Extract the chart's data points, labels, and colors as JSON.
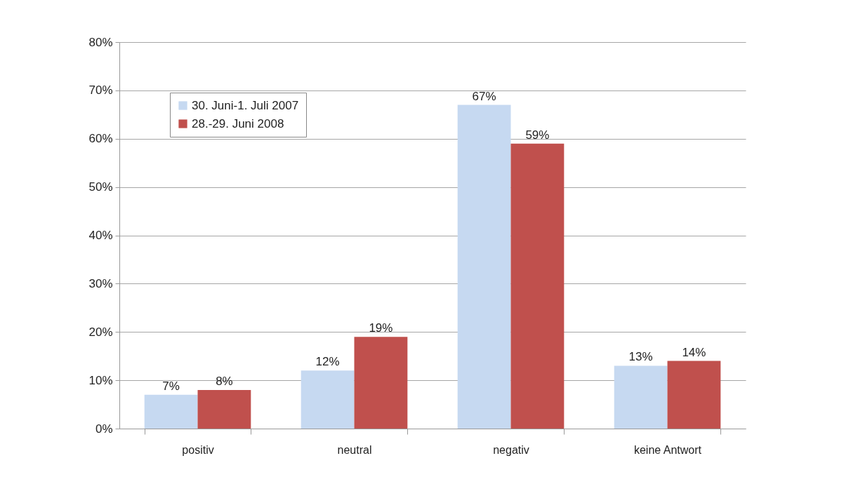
{
  "chart_data": {
    "type": "bar",
    "categories": [
      "positiv",
      "neutral",
      "negativ",
      "keine Antwort"
    ],
    "series": [
      {
        "name": "30. Juni-1. Juli 2007",
        "color": "#c6d9f1",
        "values": [
          7,
          12,
          67,
          13
        ],
        "value_labels": [
          "7%",
          "12%",
          "67%",
          "13%"
        ]
      },
      {
        "name": "28.-29. Juni 2008",
        "color": "#c0504d",
        "values": [
          8,
          19,
          59,
          14
        ],
        "value_labels": [
          "8%",
          "19%",
          "59%",
          "14%"
        ]
      }
    ],
    "ylim": [
      0,
      80
    ],
    "yticks": [
      {
        "value": 0,
        "label": "0%"
      },
      {
        "value": 10,
        "label": "10%"
      },
      {
        "value": 20,
        "label": "20%"
      },
      {
        "value": 30,
        "label": "30%"
      },
      {
        "value": 40,
        "label": "40%"
      },
      {
        "value": 50,
        "label": "50%"
      },
      {
        "value": 60,
        "label": "60%"
      },
      {
        "value": 70,
        "label": "70%"
      },
      {
        "value": 80,
        "label": "80%"
      }
    ],
    "grid": "y",
    "legend": "top left"
  }
}
